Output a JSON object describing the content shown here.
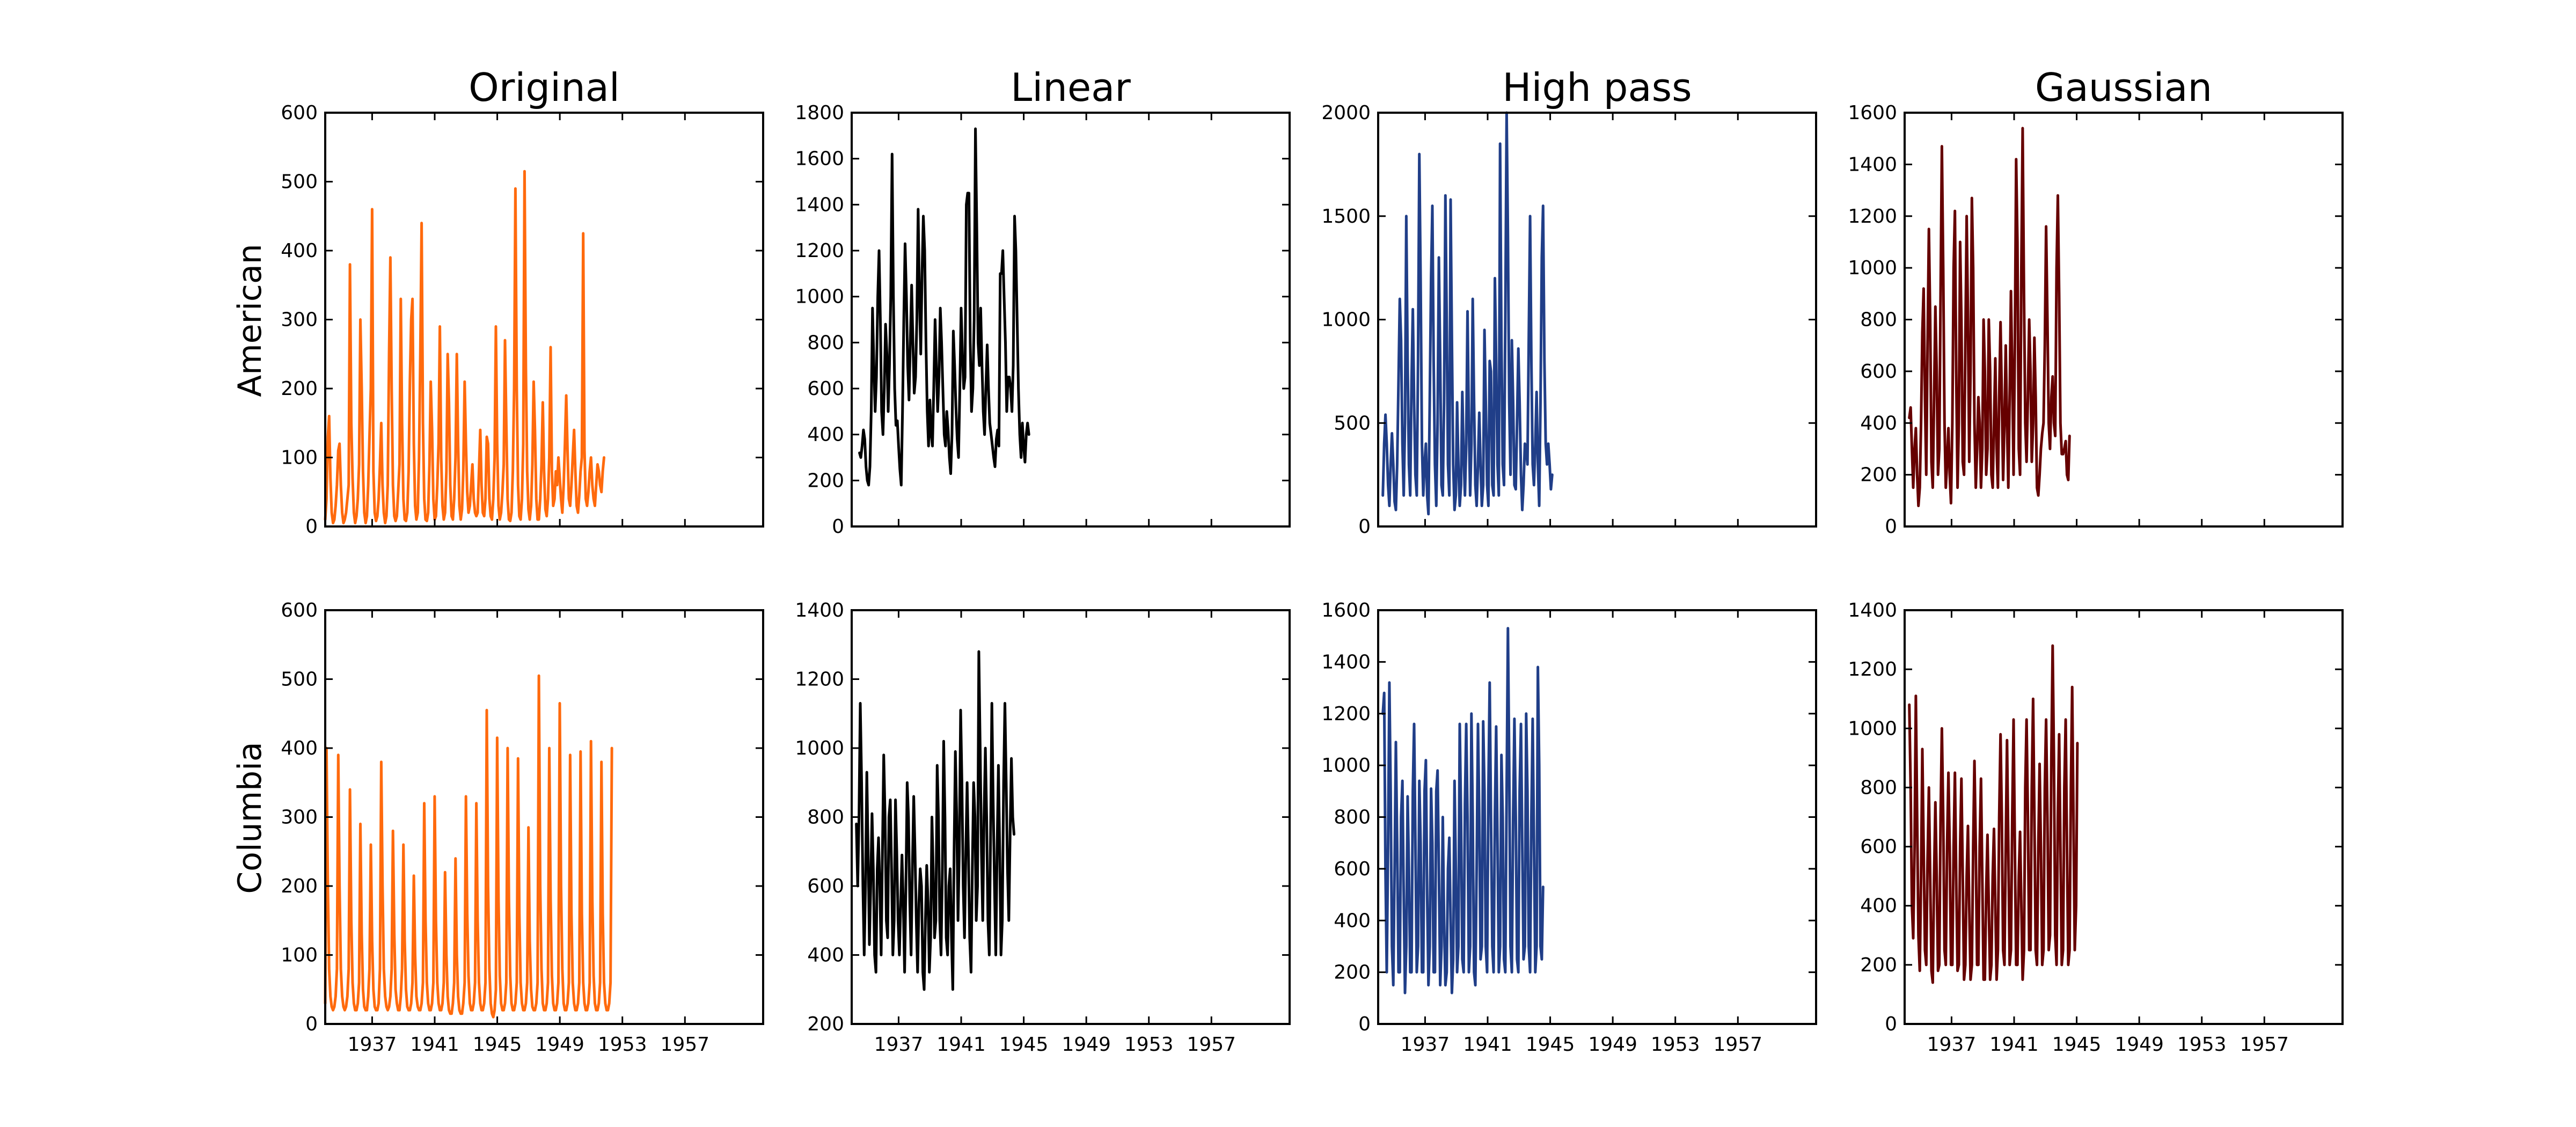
{
  "figure": {
    "column_titles": [
      "Original",
      "Linear",
      "High pass",
      "Gaussian"
    ],
    "row_labels": [
      "American",
      "Columbia"
    ]
  },
  "chart_data": [
    {
      "type": "line",
      "row": 0,
      "col": 0,
      "color": "#ff6a0d",
      "ylim": [
        0,
        600
      ],
      "yticks": [
        0,
        100,
        200,
        300,
        400,
        500,
        600
      ],
      "xlim": [
        1934,
        1962
      ],
      "xticks": [],
      "x_start": 1934,
      "x_step": 0.0833,
      "y": [
        10,
        40,
        130,
        160,
        70,
        20,
        5,
        10,
        30,
        60,
        110,
        120,
        60,
        20,
        5,
        10,
        20,
        40,
        60,
        380,
        150,
        70,
        20,
        5,
        15,
        40,
        90,
        300,
        200,
        80,
        20,
        5,
        15,
        60,
        130,
        200,
        460,
        80,
        20,
        8,
        15,
        40,
        90,
        150,
        60,
        20,
        5,
        15,
        60,
        250,
        390,
        200,
        60,
        15,
        8,
        15,
        50,
        90,
        330,
        150,
        40,
        10,
        8,
        20,
        80,
        210,
        300,
        330,
        120,
        30,
        10,
        20,
        100,
        250,
        440,
        150,
        40,
        10,
        8,
        20,
        90,
        210,
        140,
        40,
        10,
        15,
        60,
        120,
        290,
        100,
        30,
        10,
        20,
        80,
        250,
        180,
        60,
        15,
        10,
        40,
        100,
        250,
        120,
        30,
        10,
        25,
        80,
        210,
        120,
        50,
        20,
        30,
        60,
        90,
        40,
        20,
        15,
        20,
        80,
        140,
        60,
        20,
        15,
        40,
        130,
        120,
        40,
        15,
        10,
        40,
        100,
        290,
        120,
        30,
        10,
        20,
        50,
        90,
        270,
        150,
        40,
        10,
        8,
        20,
        80,
        200,
        490,
        200,
        60,
        15,
        10,
        40,
        120,
        515,
        230,
        80,
        25,
        10,
        30,
        90,
        210,
        140,
        40,
        10,
        10,
        40,
        90,
        180,
        80,
        25,
        15,
        40,
        100,
        260,
        80,
        30,
        40,
        80,
        60,
        100,
        70,
        40,
        20,
        60,
        120,
        190,
        110,
        40,
        30,
        60,
        100,
        140,
        80,
        30,
        20,
        45,
        80,
        100,
        425,
        110,
        40,
        30,
        50,
        80,
        100,
        60,
        40,
        30,
        60,
        90,
        80,
        60,
        50,
        80,
        100
      ]
    },
    {
      "type": "line",
      "row": 0,
      "col": 1,
      "color": "#000000",
      "ylim": [
        0,
        1800
      ],
      "yticks": [
        0,
        200,
        400,
        600,
        800,
        1000,
        1200,
        1400,
        1600,
        1800
      ],
      "xlim": [
        1934,
        1962
      ],
      "xticks": [],
      "x_start": 1934.5,
      "x_step": 0.0833,
      "y": [
        320,
        300,
        350,
        420,
        380,
        260,
        200,
        180,
        260,
        500,
        950,
        700,
        500,
        650,
        1000,
        1200,
        900,
        500,
        400,
        600,
        880,
        750,
        500,
        700,
        1000,
        1620,
        1000,
        600,
        440,
        460,
        350,
        250,
        180,
        500,
        900,
        1230,
        1000,
        700,
        550,
        800,
        1050,
        800,
        580,
        650,
        900,
        1380,
        1000,
        750,
        1100,
        1350,
        1200,
        800,
        500,
        350,
        550,
        400,
        350,
        600,
        900,
        700,
        500,
        650,
        950,
        800,
        600,
        400,
        350,
        500,
        420,
        300,
        230,
        400,
        850,
        700,
        520,
        380,
        300,
        600,
        950,
        750,
        600,
        650,
        1400,
        1450,
        1450,
        800,
        500,
        600,
        900,
        1730,
        1300,
        800,
        700,
        950,
        700,
        500,
        400,
        600,
        790,
        600,
        450,
        400,
        350,
        300,
        260,
        380,
        420,
        350,
        1100,
        1100,
        1200,
        1000,
        800,
        500,
        650,
        650,
        600,
        500,
        700,
        1350,
        1200,
        900,
        600,
        400,
        300,
        450,
        350,
        280,
        400,
        450,
        400
      ]
    },
    {
      "type": "line",
      "row": 0,
      "col": 2,
      "color": "#203e88",
      "ylim": [
        0,
        2000
      ],
      "yticks": [
        0,
        500,
        1000,
        1500,
        2000
      ],
      "xlim": [
        1934,
        1962
      ],
      "xticks": [],
      "x_start": 1934.3,
      "x_step": 0.0833,
      "y": [
        150,
        400,
        540,
        400,
        200,
        100,
        300,
        450,
        300,
        120,
        80,
        300,
        700,
        1100,
        900,
        400,
        150,
        500,
        1500,
        800,
        300,
        150,
        700,
        1050,
        600,
        250,
        150,
        800,
        1800,
        1200,
        400,
        150,
        300,
        400,
        150,
        60,
        600,
        1200,
        1550,
        800,
        300,
        100,
        500,
        1300,
        800,
        200,
        150,
        600,
        1600,
        1000,
        300,
        150,
        1580,
        900,
        300,
        80,
        150,
        600,
        300,
        100,
        200,
        650,
        350,
        150,
        400,
        1040,
        500,
        150,
        400,
        1100,
        600,
        200,
        100,
        300,
        550,
        300,
        100,
        200,
        950,
        600,
        200,
        100,
        800,
        750,
        200,
        150,
        1200,
        800,
        300,
        150,
        1850,
        900,
        300,
        200,
        1000,
        2000,
        1400,
        600,
        250,
        900,
        600,
        200,
        180,
        500,
        860,
        600,
        250,
        80,
        200,
        400,
        380,
        300,
        900,
        1500,
        800,
        300,
        200,
        400,
        650,
        300,
        100,
        600,
        1300,
        1550,
        800,
        400,
        300,
        400,
        300,
        180,
        250
      ]
    },
    {
      "type": "line",
      "row": 0,
      "col": 3,
      "color": "#660000",
      "ylim": [
        0,
        1600
      ],
      "yticks": [
        0,
        200,
        400,
        600,
        800,
        1000,
        1200,
        1400,
        1600
      ],
      "xlim": [
        1934,
        1962
      ],
      "xticks": [],
      "x_start": 1934.3,
      "x_step": 0.0833,
      "y": [
        420,
        460,
        300,
        150,
        300,
        380,
        200,
        80,
        150,
        400,
        750,
        920,
        500,
        200,
        700,
        1150,
        800,
        250,
        150,
        500,
        850,
        600,
        200,
        300,
        900,
        1470,
        1000,
        400,
        150,
        250,
        380,
        200,
        90,
        400,
        1000,
        1220,
        600,
        150,
        400,
        1100,
        800,
        250,
        200,
        700,
        1200,
        800,
        250,
        600,
        1270,
        1000,
        400,
        150,
        300,
        500,
        400,
        150,
        300,
        800,
        600,
        200,
        300,
        800,
        600,
        200,
        150,
        400,
        650,
        300,
        150,
        500,
        790,
        500,
        180,
        400,
        700,
        400,
        150,
        500,
        910,
        600,
        200,
        700,
        1420,
        1100,
        300,
        200,
        1000,
        1540,
        900,
        400,
        250,
        500,
        800,
        600,
        250,
        400,
        730,
        500,
        150,
        120,
        200,
        300,
        360,
        400,
        700,
        1160,
        800,
        400,
        300,
        500,
        580,
        400,
        350,
        1000,
        1280,
        900,
        400,
        280,
        280,
        300,
        330,
        200,
        180,
        350
      ]
    },
    {
      "type": "line",
      "row": 1,
      "col": 0,
      "color": "#ff6a0d",
      "ylim": [
        0,
        600
      ],
      "yticks": [
        0,
        100,
        200,
        300,
        400,
        500,
        600
      ],
      "xlim": [
        1934,
        1962
      ],
      "xticks": [
        "1937",
        "1941",
        "1945",
        "1949",
        "1953",
        "1957"
      ],
      "xtick_values": [
        1937,
        1941,
        1945,
        1949,
        1953,
        1957
      ],
      "x_start": 1934,
      "x_step": 0.0833,
      "y": [
        30,
        400,
        200,
        80,
        40,
        25,
        20,
        25,
        40,
        80,
        390,
        200,
        80,
        40,
        25,
        20,
        25,
        40,
        80,
        340,
        150,
        60,
        30,
        20,
        20,
        30,
        60,
        290,
        130,
        50,
        25,
        20,
        20,
        40,
        80,
        260,
        120,
        50,
        25,
        20,
        20,
        30,
        80,
        380,
        200,
        80,
        40,
        25,
        20,
        25,
        40,
        80,
        280,
        130,
        50,
        30,
        20,
        20,
        40,
        80,
        260,
        120,
        50,
        25,
        20,
        20,
        30,
        60,
        215,
        100,
        40,
        25,
        20,
        20,
        30,
        60,
        320,
        150,
        60,
        30,
        20,
        20,
        30,
        60,
        330,
        150,
        60,
        30,
        20,
        20,
        30,
        60,
        220,
        100,
        40,
        20,
        15,
        15,
        30,
        60,
        240,
        100,
        40,
        20,
        15,
        15,
        30,
        60,
        330,
        160,
        70,
        30,
        20,
        20,
        30,
        60,
        320,
        150,
        60,
        30,
        20,
        20,
        30,
        60,
        455,
        200,
        80,
        30,
        15,
        10,
        20,
        50,
        415,
        180,
        70,
        30,
        20,
        20,
        30,
        60,
        400,
        180,
        70,
        30,
        20,
        20,
        30,
        60,
        385,
        160,
        60,
        30,
        20,
        20,
        30,
        60,
        285,
        120,
        50,
        25,
        20,
        20,
        30,
        60,
        505,
        200,
        80,
        30,
        20,
        20,
        30,
        60,
        400,
        180,
        70,
        30,
        20,
        20,
        30,
        60,
        465,
        200,
        80,
        30,
        20,
        20,
        30,
        60,
        390,
        160,
        60,
        30,
        20,
        20,
        30,
        60,
        395,
        160,
        60,
        30,
        20,
        20,
        30,
        60,
        410,
        180,
        70,
        30,
        20,
        20,
        30,
        60,
        380,
        160,
        60,
        30,
        20,
        20,
        30,
        60,
        400
      ]
    },
    {
      "type": "line",
      "row": 1,
      "col": 1,
      "color": "#000000",
      "ylim": [
        200,
        1400
      ],
      "yticks": [
        200,
        400,
        600,
        800,
        1000,
        1200,
        1400
      ],
      "xlim": [
        1934,
        1962
      ],
      "xticks": [
        "1937",
        "1941",
        "1945",
        "1949",
        "1953",
        "1957"
      ],
      "xtick_values": [
        1937,
        1941,
        1945,
        1949,
        1953,
        1957
      ],
      "x_start": 1934.3,
      "x_step": 0.0833,
      "y": [
        780,
        600,
        800,
        1130,
        900,
        600,
        400,
        600,
        930,
        700,
        430,
        600,
        810,
        650,
        400,
        350,
        650,
        740,
        600,
        400,
        700,
        980,
        800,
        500,
        450,
        800,
        850,
        650,
        400,
        500,
        850,
        700,
        500,
        400,
        550,
        690,
        550,
        350,
        600,
        900,
        800,
        550,
        400,
        650,
        860,
        700,
        500,
        350,
        550,
        650,
        600,
        350,
        300,
        500,
        660,
        550,
        350,
        450,
        800,
        640,
        450,
        500,
        950,
        800,
        500,
        400,
        650,
        1020,
        800,
        450,
        400,
        600,
        650,
        450,
        300,
        700,
        990,
        800,
        500,
        700,
        1110,
        900,
        600,
        450,
        700,
        900,
        700,
        450,
        350,
        650,
        900,
        800,
        500,
        600,
        1280,
        1000,
        700,
        500,
        800,
        1000,
        800,
        500,
        400,
        750,
        1130,
        850,
        600,
        400,
        700,
        950,
        700,
        400,
        500,
        900,
        1130,
        900,
        650,
        500,
        750,
        970,
        800,
        750
      ]
    },
    {
      "type": "line",
      "row": 1,
      "col": 2,
      "color": "#203e88",
      "ylim": [
        0,
        1600
      ],
      "yticks": [
        0,
        200,
        400,
        600,
        800,
        1000,
        1200,
        1400,
        1600
      ],
      "xlim": [
        1934,
        1962
      ],
      "xticks": [
        "1937",
        "1941",
        "1945",
        "1949",
        "1953",
        "1957"
      ],
      "xtick_values": [
        1937,
        1941,
        1945,
        1949,
        1953,
        1957
      ],
      "x_start": 1934.3,
      "x_step": 0.0833,
      "y": [
        1200,
        1280,
        600,
        200,
        700,
        1320,
        900,
        300,
        150,
        600,
        1090,
        700,
        200,
        200,
        800,
        940,
        500,
        120,
        300,
        880,
        600,
        200,
        200,
        900,
        1160,
        700,
        200,
        300,
        940,
        700,
        200,
        200,
        900,
        1020,
        500,
        150,
        300,
        910,
        700,
        200,
        200,
        900,
        980,
        600,
        150,
        300,
        800,
        400,
        150,
        200,
        600,
        720,
        400,
        120,
        250,
        940,
        600,
        200,
        300,
        1160,
        800,
        250,
        200,
        850,
        1160,
        800,
        200,
        300,
        1200,
        800,
        200,
        150,
        600,
        1160,
        800,
        250,
        300,
        1170,
        900,
        300,
        200,
        900,
        1320,
        800,
        300,
        200,
        800,
        1150,
        700,
        200,
        300,
        1040,
        800,
        250,
        200,
        900,
        1530,
        1000,
        300,
        200,
        800,
        1180,
        800,
        250,
        200,
        900,
        1160,
        700,
        250,
        300,
        1200,
        900,
        300,
        200,
        800,
        1180,
        700,
        200,
        300,
        1380,
        1000,
        300,
        250,
        530
      ]
    },
    {
      "type": "line",
      "row": 1,
      "col": 3,
      "color": "#660000",
      "ylim": [
        0,
        1400
      ],
      "yticks": [
        0,
        200,
        400,
        600,
        800,
        1000,
        1200,
        1400
      ],
      "xlim": [
        1934,
        1962
      ],
      "xticks": [
        "1937",
        "1941",
        "1945",
        "1949",
        "1953",
        "1957"
      ],
      "xtick_values": [
        1937,
        1941,
        1945,
        1949,
        1953,
        1957
      ],
      "x_start": 1934.3,
      "x_step": 0.0833,
      "y": [
        1080,
        800,
        400,
        290,
        600,
        1110,
        700,
        300,
        180,
        500,
        930,
        600,
        250,
        200,
        550,
        800,
        500,
        180,
        140,
        500,
        750,
        500,
        180,
        200,
        700,
        1000,
        700,
        250,
        200,
        600,
        850,
        600,
        200,
        200,
        600,
        850,
        500,
        180,
        200,
        600,
        830,
        500,
        150,
        200,
        500,
        670,
        400,
        150,
        200,
        600,
        890,
        600,
        200,
        200,
        600,
        830,
        500,
        150,
        150,
        450,
        640,
        400,
        150,
        200,
        500,
        660,
        400,
        150,
        250,
        700,
        980,
        700,
        250,
        200,
        600,
        960,
        600,
        200,
        250,
        700,
        1030,
        600,
        200,
        200,
        500,
        650,
        400,
        150,
        250,
        800,
        1030,
        700,
        250,
        250,
        800,
        1100,
        700,
        250,
        200,
        600,
        880,
        600,
        200,
        250,
        800,
        1030,
        700,
        250,
        300,
        900,
        1280,
        900,
        300,
        200,
        700,
        980,
        600,
        200,
        250,
        800,
        1030,
        600,
        200,
        250,
        800,
        1140,
        700,
        250,
        400,
        950
      ]
    }
  ]
}
